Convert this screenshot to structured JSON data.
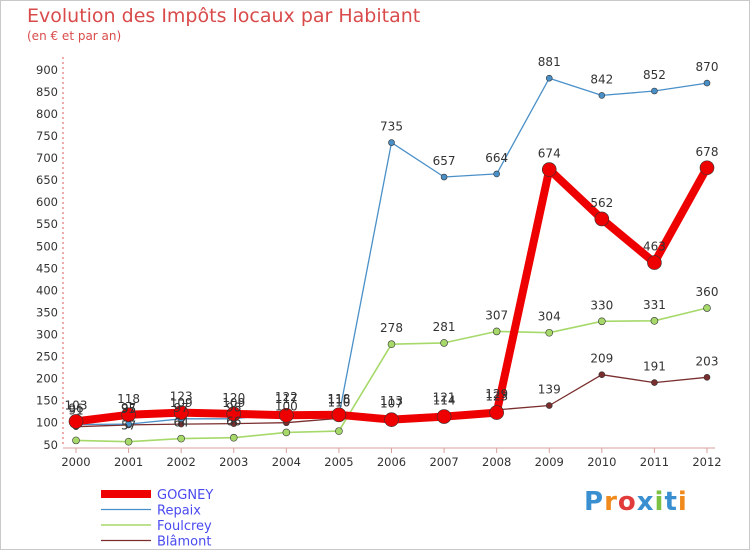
{
  "header": {
    "title": "Evolution des Impôts locaux par Habitant",
    "subtitle": "(en € et par an)"
  },
  "logo": {
    "text": "Proxiti"
  },
  "chart_data": {
    "type": "line",
    "x": [
      "2000",
      "2001",
      "2002",
      "2003",
      "2004",
      "2005",
      "2006",
      "2007",
      "2008",
      "2009",
      "2010",
      "2011",
      "2012"
    ],
    "yticks": [
      50,
      100,
      150,
      200,
      250,
      300,
      350,
      400,
      450,
      500,
      550,
      600,
      650,
      700,
      750,
      800,
      850,
      900
    ],
    "ylim": [
      45,
      920
    ],
    "grid": false,
    "legend_position": "bottom-left",
    "series": [
      {
        "name": "Blâmont",
        "color": "#7a2e2e",
        "stroke": 1.3,
        "marker": 3,
        "values": [
          91,
          95,
          97,
          98,
          100,
          110,
          113,
          121,
          129,
          139,
          209,
          191,
          203
        ],
        "labels": [
          "91",
          "95",
          "97",
          "98",
          "100",
          "110",
          "113",
          "121",
          "129",
          "139",
          "209",
          "191",
          "203"
        ]
      },
      {
        "name": "Foulcrey",
        "color": "#a6d96a",
        "stroke": 1.6,
        "marker": 3.5,
        "values": [
          60,
          57,
          64,
          66,
          78,
          81,
          278,
          281,
          307,
          304,
          330,
          331,
          360
        ],
        "labels": [
          "",
          "57",
          "64",
          "66",
          "",
          "",
          "278",
          "281",
          "307",
          "304",
          "330",
          "331",
          "360"
        ]
      },
      {
        "name": "Repaix",
        "color": "#4a90c8",
        "stroke": 1.3,
        "marker": 3,
        "values": [
          96,
          97,
          109,
          109,
          122,
          116,
          735,
          657,
          664,
          881,
          842,
          852,
          870
        ],
        "labels": [
          "96",
          "97",
          "109",
          "109",
          "122",
          "116",
          "735",
          "657",
          "664",
          "881",
          "842",
          "852",
          "870"
        ]
      },
      {
        "name": "GOGNEY",
        "color": "#ee0000",
        "stroke": 8,
        "marker": 7,
        "values": [
          103,
          118,
          123,
          120,
          117,
          118,
          107,
          114,
          123,
          674,
          562,
          463,
          678
        ],
        "labels": [
          "103",
          "118",
          "123",
          "120",
          "117",
          "118",
          "107",
          "114",
          "123",
          "674",
          "562",
          "463",
          "678"
        ]
      }
    ]
  }
}
